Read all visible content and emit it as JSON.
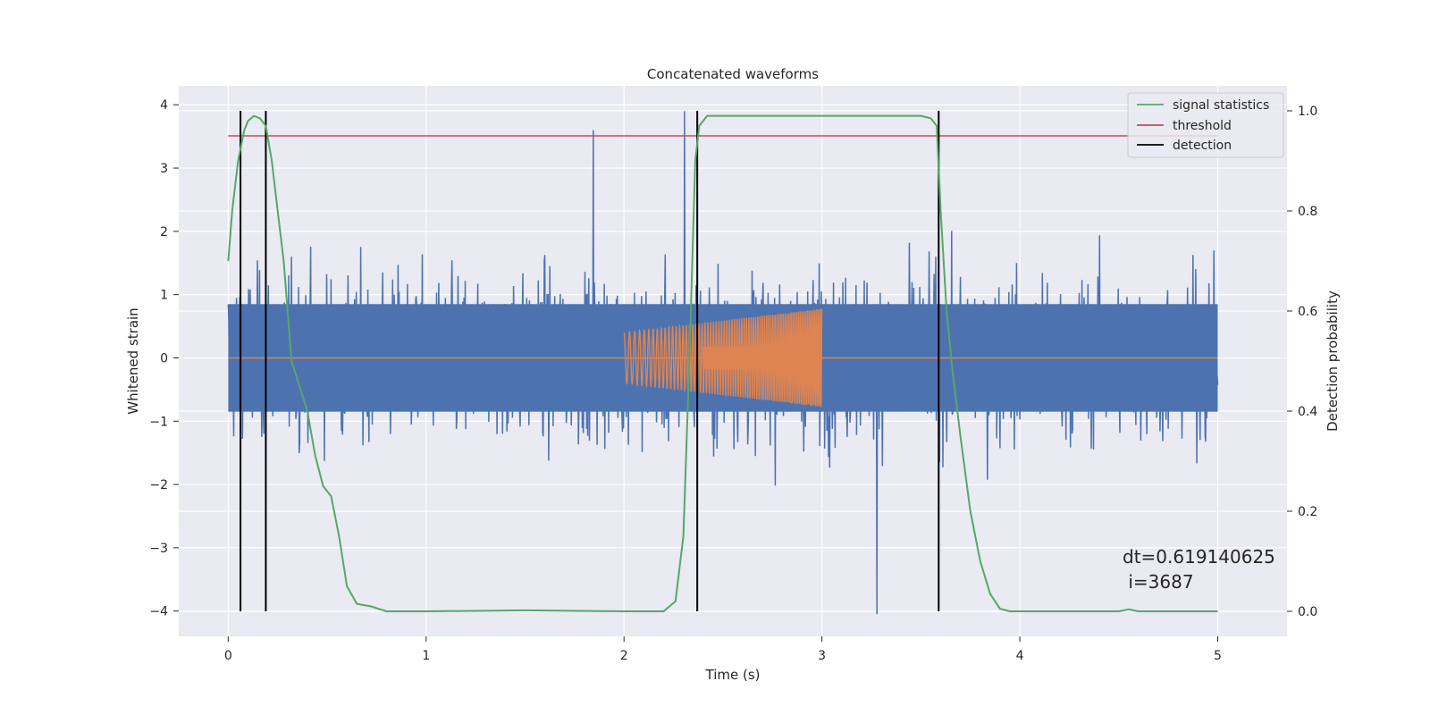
{
  "chart_data": {
    "type": "line",
    "title": "Concatenated waveforms",
    "xlabel": "Time (s)",
    "ylabel": "Whitened strain",
    "y2label": "Detection probability",
    "xlim": [
      -0.25,
      5.35
    ],
    "ylim": [
      -4.4,
      4.3
    ],
    "y2lim": [
      -0.05,
      1.05
    ],
    "xticks": [
      "0",
      "1",
      "2",
      "3",
      "4",
      "5"
    ],
    "yticks": [
      "4",
      "3",
      "2",
      "1",
      "0",
      "−1",
      "−2",
      "−3",
      "−4"
    ],
    "y2ticks": [
      "1.0",
      "0.8",
      "0.6",
      "0.4",
      "0.2",
      "0.0"
    ],
    "grid": true,
    "legend_position": "top-right",
    "legend": [
      "signal statistics",
      "threshold",
      "detection"
    ],
    "series": [
      {
        "name": "signal statistics",
        "axis": "right",
        "color": "#55a868",
        "x": [
          0,
          0.02,
          0.05,
          0.08,
          0.1,
          0.13,
          0.16,
          0.19,
          0.22,
          0.25,
          0.28,
          0.32,
          0.36,
          0.4,
          0.44,
          0.48,
          0.52,
          0.56,
          0.6,
          0.65,
          0.72,
          0.8,
          1.0,
          1.5,
          2.0,
          2.2,
          2.26,
          2.3,
          2.33,
          2.36,
          2.38,
          2.42,
          2.5,
          3.0,
          3.5,
          3.55,
          3.58,
          3.6,
          3.63,
          3.66,
          3.7,
          3.75,
          3.8,
          3.85,
          3.9,
          3.95,
          4.0,
          4.5,
          4.55,
          4.6,
          5.0
        ],
        "y": [
          0.7,
          0.8,
          0.9,
          0.96,
          0.98,
          0.99,
          0.985,
          0.97,
          0.9,
          0.8,
          0.7,
          0.5,
          0.45,
          0.4,
          0.31,
          0.25,
          0.23,
          0.15,
          0.05,
          0.015,
          0.01,
          0.0,
          0.0,
          0.002,
          0.0,
          0.0,
          0.02,
          0.15,
          0.5,
          0.9,
          0.97,
          0.99,
          0.99,
          0.99,
          0.99,
          0.985,
          0.97,
          0.8,
          0.6,
          0.48,
          0.35,
          0.2,
          0.1,
          0.035,
          0.005,
          0.0,
          0.0,
          0.0,
          0.004,
          0.0,
          0.0
        ]
      },
      {
        "name": "threshold",
        "axis": "right",
        "color": "#c44e52",
        "x": [
          0,
          5
        ],
        "y": [
          0.95,
          0.95
        ]
      },
      {
        "name": "detection",
        "axis": "right",
        "color": "#000000",
        "x": [
          0.062,
          0.19,
          2.37,
          3.59
        ],
        "y_range": [
          0,
          1
        ]
      },
      {
        "name": "",
        "axis": "left",
        "color": "#4c72b0",
        "kind": "noise",
        "x_range": [
          0,
          5
        ],
        "core_amplitude": 0.85,
        "peak_max": 3.9,
        "peak_min": -4.05
      },
      {
        "name": "",
        "axis": "left",
        "color": "#dd8452",
        "kind": "chirp",
        "x_range": [
          2,
          3
        ],
        "amplitude_start": 0.4,
        "amplitude_end": 0.78,
        "zero_line_range": [
          0,
          5
        ]
      }
    ],
    "annotations": [
      {
        "text": "dt=0.619140625",
        "x": 4.5,
        "y": -3.1
      },
      {
        "text": " i=3687",
        "x": 4.5,
        "y": -3.5
      }
    ]
  }
}
